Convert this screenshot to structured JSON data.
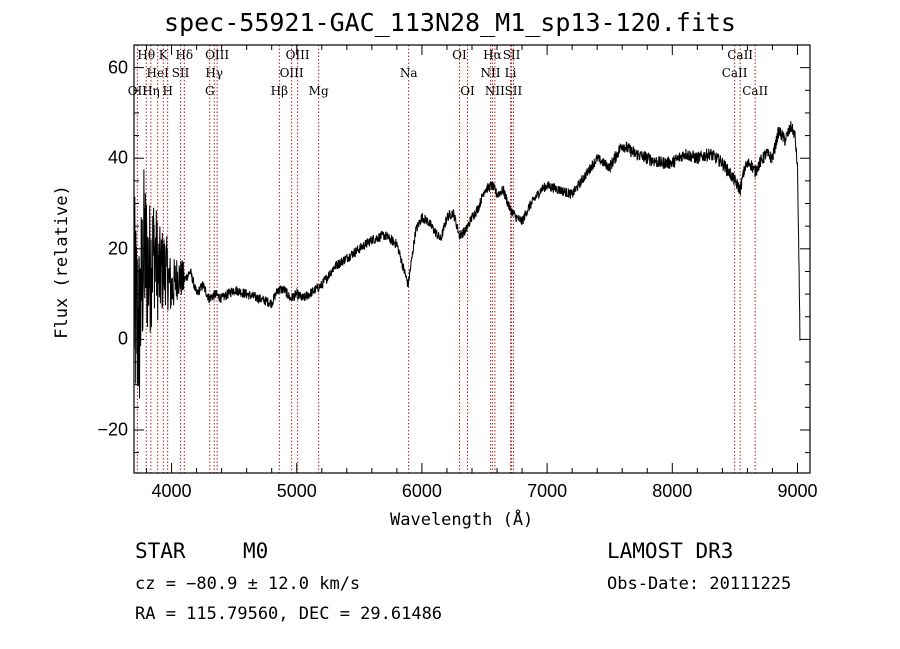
{
  "chart_data": {
    "type": "line",
    "title": "spec-55921-GAC_113N28_M1_sp13-120.fits",
    "xlabel": "Wavelength (Å)",
    "ylabel": "Flux (relative)",
    "xlim": [
      3700,
      9100
    ],
    "ylim": [
      -29.5,
      65
    ],
    "xticks": [
      4000,
      5000,
      6000,
      7000,
      8000,
      9000
    ],
    "xtick_labels": [
      "4000",
      "5000",
      "6000",
      "7000",
      "8000",
      "9000"
    ],
    "yticks": [
      -20,
      0,
      20,
      40,
      60
    ],
    "ytick_labels": [
      "−20",
      "0",
      "20",
      "40",
      "60"
    ],
    "grid": false,
    "series": [
      {
        "name": "flux",
        "color": "#000000",
        "x": [
          3700,
          3740,
          3780,
          3820,
          3860,
          3900,
          3950,
          4000,
          4050,
          4100,
          4150,
          4200,
          4250,
          4300,
          4350,
          4400,
          4500,
          4600,
          4700,
          4800,
          4850,
          4900,
          4950,
          5000,
          5050,
          5100,
          5150,
          5200,
          5300,
          5400,
          5500,
          5600,
          5700,
          5800,
          5890,
          5950,
          6000,
          6050,
          6100,
          6150,
          6200,
          6250,
          6300,
          6350,
          6400,
          6450,
          6500,
          6563,
          6600,
          6650,
          6700,
          6750,
          6800,
          6850,
          6900,
          6950,
          7000,
          7100,
          7200,
          7300,
          7400,
          7500,
          7600,
          7700,
          7800,
          7900,
          8000,
          8100,
          8200,
          8300,
          8400,
          8450,
          8500,
          8542,
          8580,
          8620,
          8662,
          8700,
          8750,
          8800,
          8850,
          8900,
          8950,
          8980,
          9000,
          9010,
          9020
        ],
        "y": [
          8,
          2,
          20,
          15,
          20,
          14,
          16,
          11,
          14,
          13,
          15,
          10,
          12,
          9,
          10,
          9,
          11,
          10,
          9,
          8,
          11,
          11,
          9,
          10,
          9,
          10,
          11,
          12,
          16,
          18,
          20,
          22,
          23,
          21,
          12,
          24,
          27,
          26,
          24,
          22,
          27,
          28,
          23,
          24,
          27,
          29,
          33,
          34,
          32,
          33,
          29,
          27,
          26,
          29,
          31,
          33,
          34,
          33,
          32,
          36,
          40,
          38,
          43,
          41,
          40,
          39,
          39,
          41,
          40,
          41,
          39,
          37,
          35,
          33,
          38,
          39,
          37,
          39,
          41,
          40,
          46,
          44,
          47,
          45,
          38,
          20,
          0
        ],
        "noisy_region": {
          "x_start": 3700,
          "x_end": 4100,
          "amplitude_start": 30,
          "amplitude_end": 6
        }
      }
    ],
    "reference_lines": [
      {
        "label": "OII",
        "x": 3727,
        "row": 3
      },
      {
        "label": "Hθ",
        "x": 3798,
        "row": 1
      },
      {
        "label": "Hη",
        "x": 3835,
        "row": 3
      },
      {
        "label": "HeI",
        "x": 3889,
        "row": 2
      },
      {
        "label": "K",
        "x": 3934,
        "row": 1
      },
      {
        "label": "H",
        "x": 3969,
        "row": 3
      },
      {
        "label": "SII",
        "x": 4072,
        "row": 2
      },
      {
        "label": "Hδ",
        "x": 4102,
        "row": 1
      },
      {
        "label": "G",
        "x": 4305,
        "row": 3
      },
      {
        "label": "Hγ",
        "x": 4341,
        "row": 2
      },
      {
        "label": "OIII",
        "x": 4364,
        "row": 1
      },
      {
        "label": "Hβ",
        "x": 4861,
        "row": 3
      },
      {
        "label": "OIII",
        "x": 4959,
        "row": 2
      },
      {
        "label": "OIII",
        "x": 5007,
        "row": 1
      },
      {
        "label": "Mg",
        "x": 5175,
        "row": 3
      },
      {
        "label": "Na",
        "x": 5894,
        "row": 2
      },
      {
        "label": "OI",
        "x": 6300,
        "row": 1
      },
      {
        "label": "OI",
        "x": 6364,
        "row": 3
      },
      {
        "label": "NII",
        "x": 6548,
        "row": 2
      },
      {
        "label": "Hα",
        "x": 6563,
        "row": 1
      },
      {
        "label": "NII",
        "x": 6583,
        "row": 3
      },
      {
        "label": "Li",
        "x": 6708,
        "row": 2
      },
      {
        "label": "SII",
        "x": 6716,
        "row": 1
      },
      {
        "label": "SII",
        "x": 6731,
        "row": 3
      },
      {
        "label": "CaII",
        "x": 8498,
        "row": 2
      },
      {
        "label": "CaII",
        "x": 8542,
        "row": 1
      },
      {
        "label": "CaII",
        "x": 8662,
        "row": 3
      }
    ]
  },
  "info": {
    "object_class": "STAR",
    "subclass": "M0",
    "survey": "LAMOST DR3",
    "cz": "cz = −80.9 ± 12.0 km/s",
    "obs_date": "Obs-Date: 20111225",
    "coords": "RA = 115.79560, DEC =  29.61486"
  },
  "colors": {
    "spectrum": "#000000",
    "reference_line": "#b22222",
    "axis": "#000000"
  }
}
